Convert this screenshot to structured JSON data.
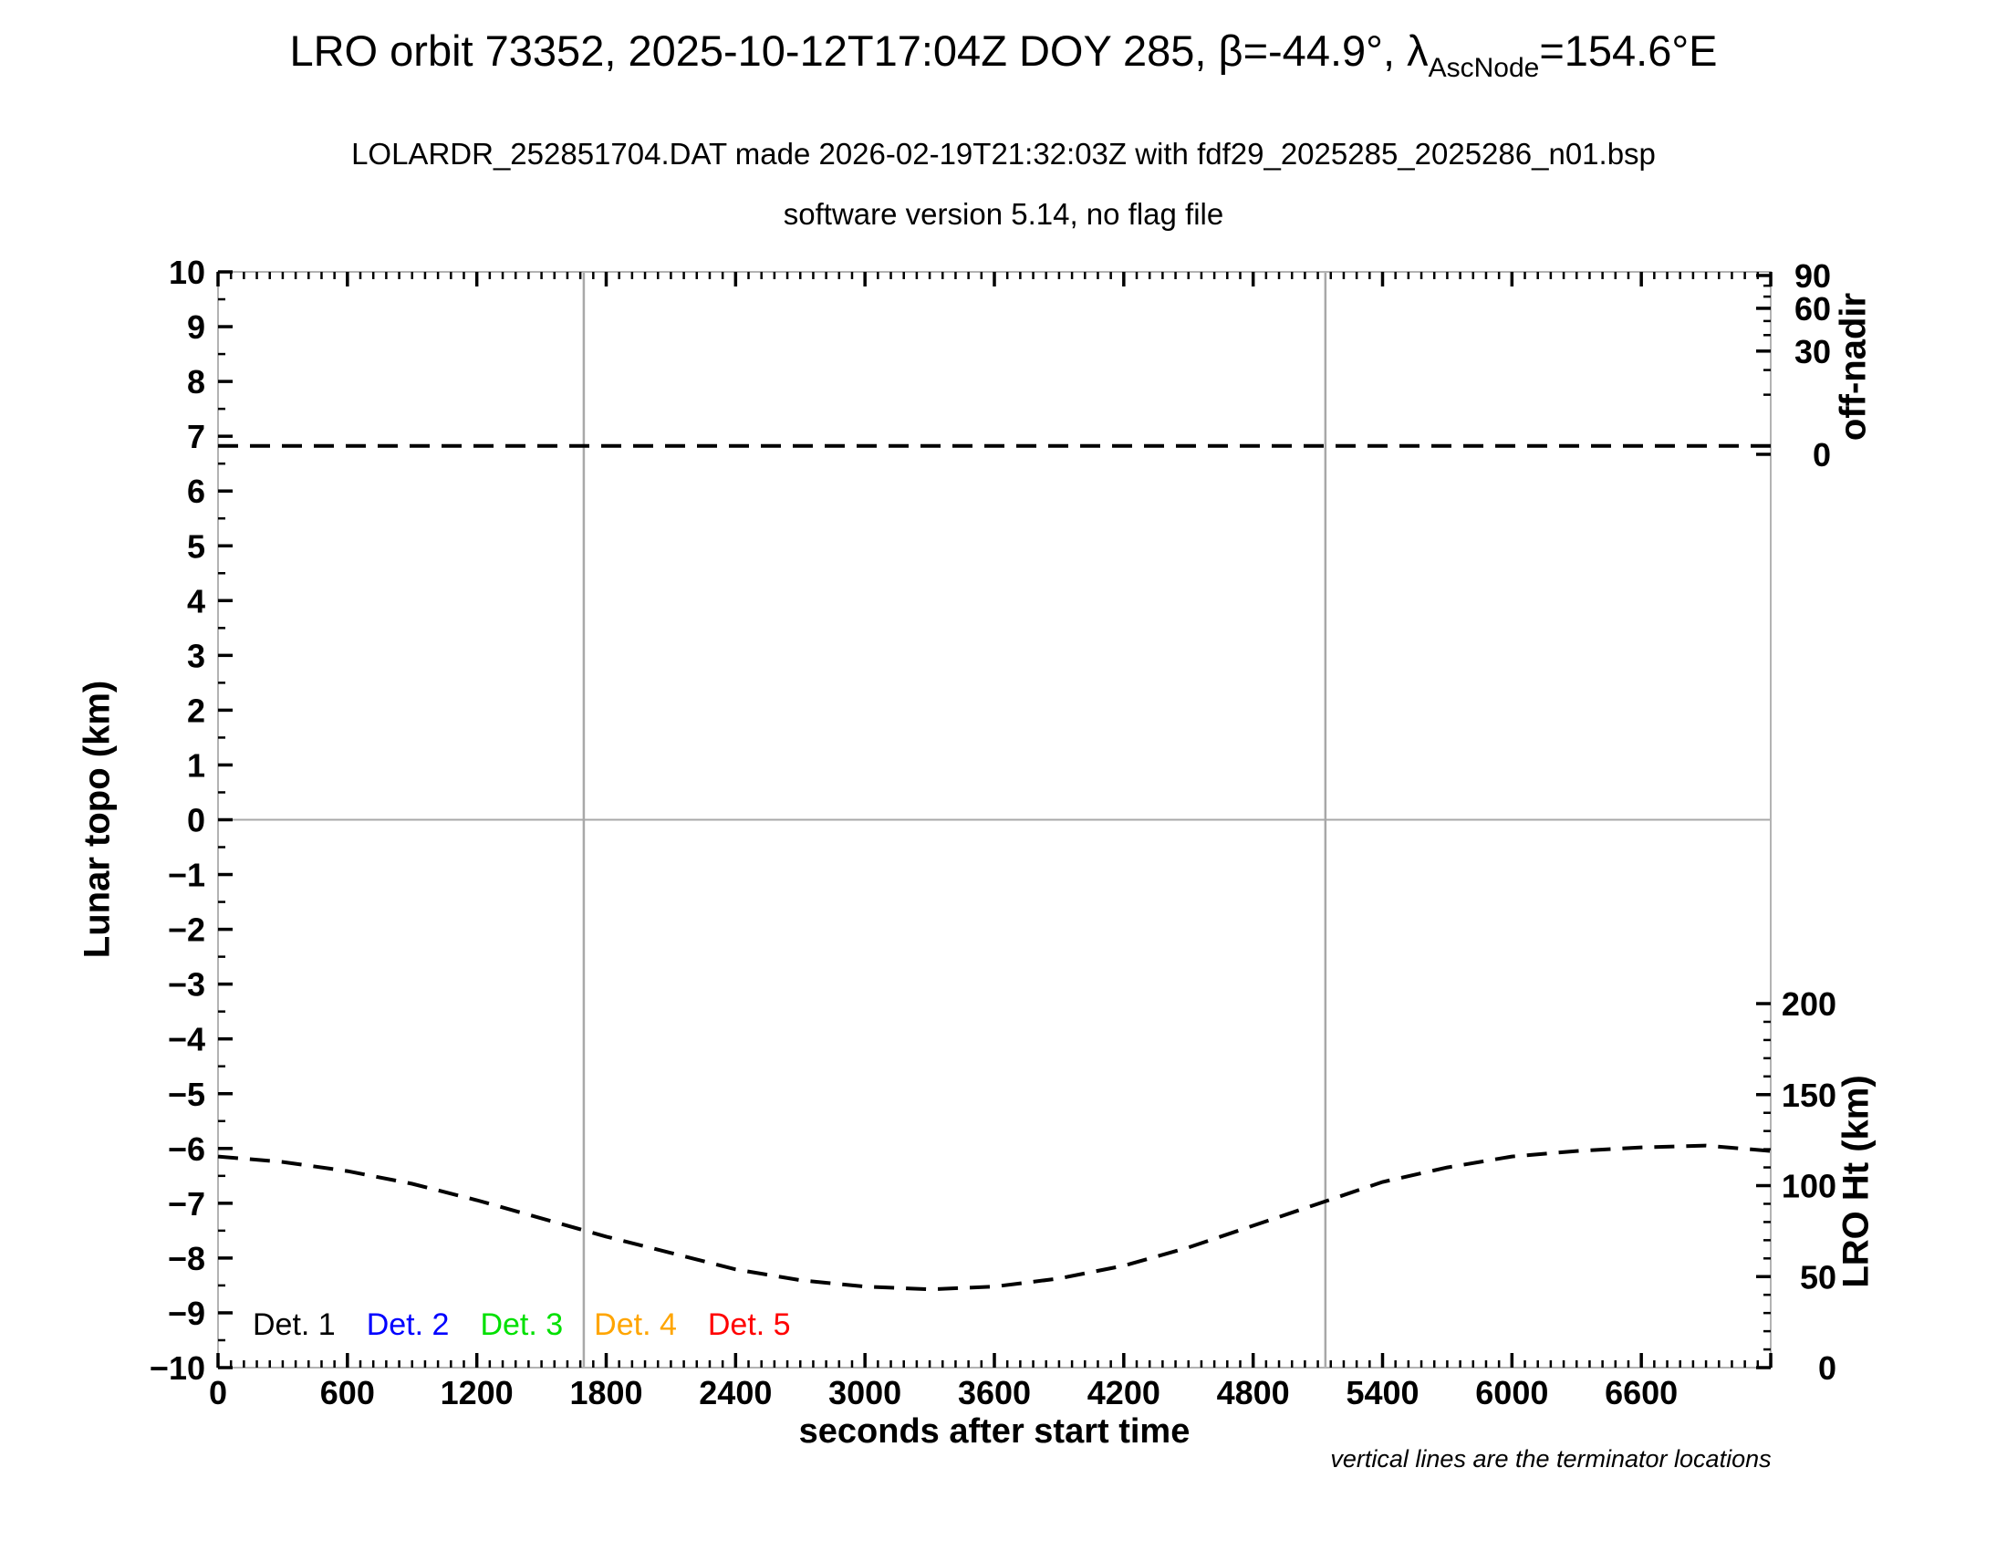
{
  "header": {
    "title_prefix": "LRO orbit 73352, 2025-10-12T17:04Z DOY 285, β=-44.9°, λ",
    "title_subscript": "AscNode",
    "title_suffix": "=154.6°E",
    "subtitle_line1": "LOLARDR_252851704.DAT made 2026-02-19T21:32:03Z with fdf29_2025285_2025286_n01.bsp",
    "subtitle_line2": "software version 5.14, no flag file"
  },
  "footnote": "vertical lines are the terminator locations",
  "legend": [
    {
      "label": "Det. 1",
      "color": "#000000"
    },
    {
      "label": "Det. 2",
      "color": "#0000ff"
    },
    {
      "label": "Det. 3",
      "color": "#00e000"
    },
    {
      "label": "Det. 4",
      "color": "#ffa500"
    },
    {
      "label": "Det. 5",
      "color": "#ff0000"
    }
  ],
  "chart_data": {
    "type": "line",
    "title": "LRO orbit 73352, 2025-10-12T17:04Z DOY 285, β=-44.9°, λAscNode=154.6°E",
    "x_axis": {
      "label": "seconds after start time",
      "min": 0,
      "max": 7200,
      "major_tick_step": 600,
      "minor_tick_step": 60,
      "tick_labels": [
        0,
        600,
        1200,
        1800,
        2400,
        3000,
        3600,
        4200,
        4800,
        5400,
        6000,
        6600
      ]
    },
    "y_axis_left": {
      "label": "Lunar topo (km)",
      "min": -10,
      "max": 10,
      "major_tick_step": 1,
      "minor_tick_step": 0.5,
      "zero_gridline": true
    },
    "y_axis_right_top": {
      "label": "off-nadir",
      "scale": "sqrt",
      "major_ticks": [
        0,
        30,
        60,
        90
      ],
      "minor_ticks": [
        10,
        20,
        40,
        50,
        70,
        80
      ],
      "deg0_frac_from_top": 0.1665,
      "deg90_frac_from_top": 0.0033
    },
    "y_axis_right_bottom": {
      "label": "LRO Ht (km)",
      "min": 0,
      "max": 200,
      "major_tick_step": 50,
      "minor_tick_step": 10,
      "km0_frac_from_top": 1.0,
      "km200_frac_from_top": 0.6678
    },
    "terminator_lines_sec": [
      1696,
      5135
    ],
    "grid": "y-zero-only",
    "legend_position": "inside-bottom-left",
    "series": [
      {
        "name": "spacecraft off-nadir angle",
        "axis": "right_top",
        "style": "dashed",
        "color": "#000000",
        "points": [
          [
            0,
            0.2
          ],
          [
            7200,
            0.2
          ]
        ]
      },
      {
        "name": "LRO height",
        "axis": "right_bottom",
        "style": "dashed",
        "color": "#000000",
        "points": [
          [
            0,
            116
          ],
          [
            300,
            113
          ],
          [
            600,
            108
          ],
          [
            900,
            101
          ],
          [
            1200,
            92
          ],
          [
            1500,
            82
          ],
          [
            1800,
            72
          ],
          [
            2100,
            63
          ],
          [
            2400,
            54
          ],
          [
            2700,
            48
          ],
          [
            3000,
            44.5
          ],
          [
            3300,
            43
          ],
          [
            3600,
            44.5
          ],
          [
            3900,
            49
          ],
          [
            4200,
            56
          ],
          [
            4500,
            66
          ],
          [
            4800,
            78
          ],
          [
            5100,
            90
          ],
          [
            5400,
            102
          ],
          [
            5700,
            110
          ],
          [
            6000,
            116
          ],
          [
            6300,
            119
          ],
          [
            6600,
            121
          ],
          [
            6900,
            122
          ],
          [
            7200,
            119
          ]
        ]
      }
    ]
  }
}
